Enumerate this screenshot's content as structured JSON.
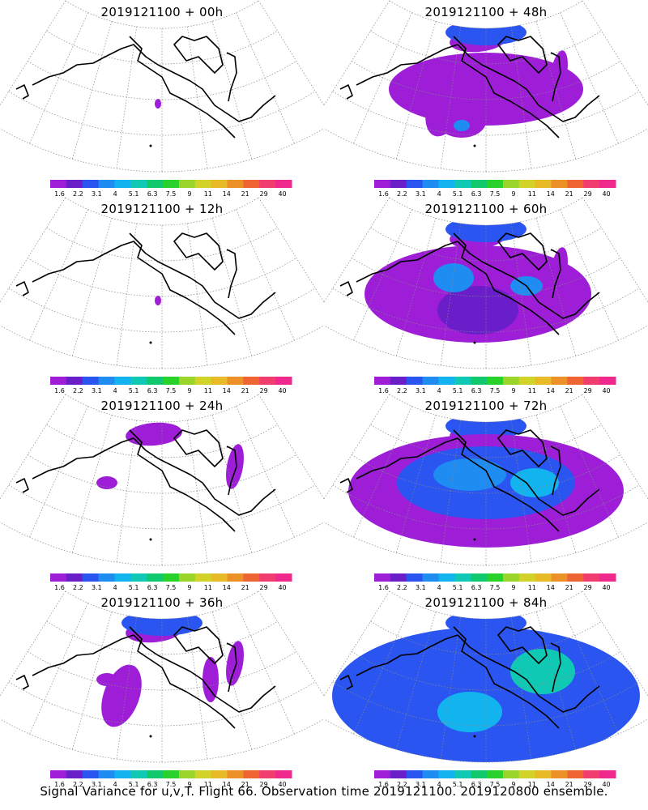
{
  "footer": "Signal Variance for u,v,T. Flight 66. Observation time 2019121100. 2019120800 ensemble.",
  "colorbar": {
    "labels": [
      "1.6",
      "2.2",
      "3.1",
      "4",
      "5.1",
      "6.3",
      "7.5",
      "9",
      "11",
      "14",
      "21",
      "29",
      "40"
    ],
    "colors": [
      "#9e1ed8",
      "#6a1ec9",
      "#2a55f0",
      "#1e8cf0",
      "#12b4f0",
      "#10c9b4",
      "#10c96e",
      "#28d22a",
      "#9bd42a",
      "#d2d228",
      "#e8ba28",
      "#eb9128",
      "#ee6432",
      "#f03c6e",
      "#f0288c"
    ]
  },
  "panels": [
    {
      "title": "2019121100 + 00h",
      "level": 0
    },
    {
      "title": "2019121100 + 48h",
      "level": 3
    },
    {
      "title": "2019121100 + 12h",
      "level": 0
    },
    {
      "title": "2019121100 + 60h",
      "level": 4
    },
    {
      "title": "2019121100 + 24h",
      "level": 1
    },
    {
      "title": "2019121100 + 72h",
      "level": 5
    },
    {
      "title": "2019121100 + 36h",
      "level": 2
    },
    {
      "title": "2019121100 + 84h",
      "level": 6
    }
  ]
}
